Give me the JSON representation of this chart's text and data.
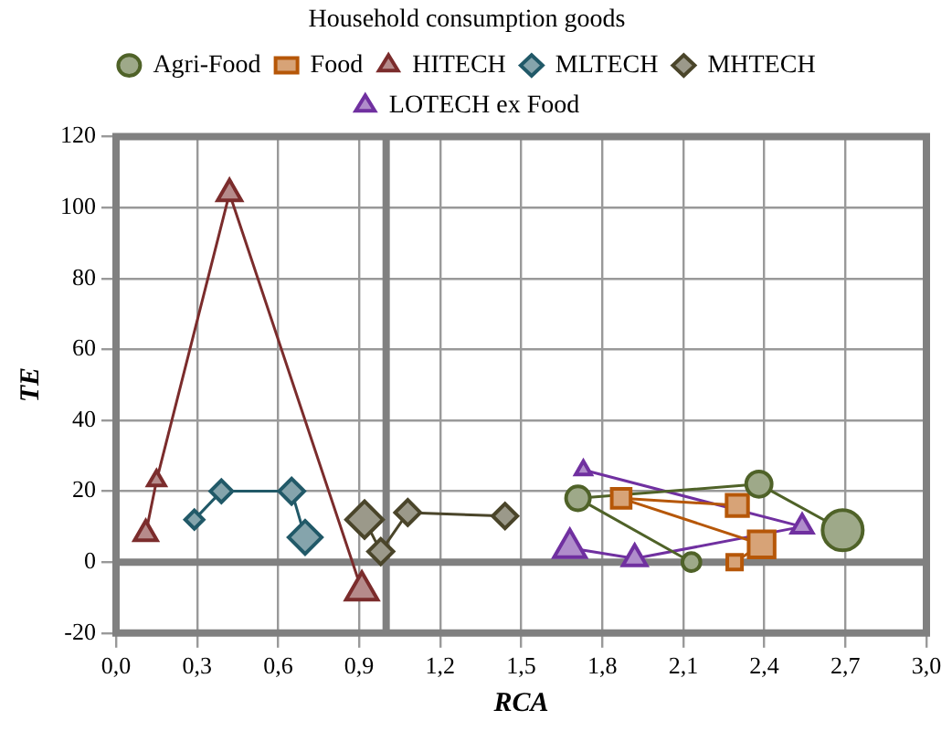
{
  "chart_data": {
    "type": "bubble",
    "xlabel": "RCA",
    "ylabel": "TE",
    "legend_title": "Household consumption goods",
    "legend": "top",
    "grid": true,
    "xlim": [
      0,
      3
    ],
    "xticks": [
      {
        "value": 0,
        "label": "0,0"
      },
      {
        "value": 0.3,
        "label": "0,3"
      },
      {
        "value": 0.6,
        "label": "0,6"
      },
      {
        "value": 0.9,
        "label": "0,9"
      },
      {
        "value": 1.2,
        "label": "1,2"
      },
      {
        "value": 1.5,
        "label": "1,5"
      },
      {
        "value": 1.8,
        "label": "1,8"
      },
      {
        "value": 2.1,
        "label": "2,1"
      },
      {
        "value": 2.4,
        "label": "2,4"
      },
      {
        "value": 2.7,
        "label": "2,7"
      },
      {
        "value": 3,
        "label": "3,0"
      }
    ],
    "ylim": [
      -20,
      120
    ],
    "yticks": [
      -20,
      0,
      20,
      40,
      60,
      80,
      100,
      120
    ],
    "ref_lines": [
      {
        "axis": "y",
        "value": 0,
        "color": "#808080"
      },
      {
        "axis": "x",
        "value": 1,
        "color": "#808080"
      }
    ],
    "series": [
      {
        "name": "Agri-Food",
        "color": "#4f6228",
        "marker": "circle",
        "x": [
          2.69,
          2.38,
          1.71,
          2.13
        ],
        "values": [
          9,
          22,
          18,
          0
        ],
        "sizes": [
          1,
          0.4,
          0.35,
          0.2
        ]
      },
      {
        "name": "Food",
        "color": "#b65708",
        "marker": "square",
        "x": [
          2.3,
          1.87,
          2.39,
          2.29
        ],
        "values": [
          16,
          18,
          5,
          0
        ],
        "sizes": [
          0.36,
          0.28,
          0.53,
          0.17
        ]
      },
      {
        "name": "HITECH",
        "color": "#7b2c2c",
        "marker": "triangle",
        "x": [
          0.91,
          0.42,
          0.15,
          0.11
        ],
        "values": [
          -8,
          104,
          23,
          8
        ],
        "sizes": [
          0.34,
          0.19,
          0.1,
          0.17
        ]
      },
      {
        "name": "MLTECH",
        "color": "#215968",
        "marker": "diamond",
        "x": [
          0.7,
          0.65,
          0.39,
          0.29
        ],
        "values": [
          7,
          20,
          20,
          12
        ],
        "sizes": [
          0.43,
          0.25,
          0.19,
          0.13
        ]
      },
      {
        "name": "MHTECH",
        "color": "#4a452a",
        "marker": "diamond",
        "x": [
          1.44,
          1.08,
          0.98,
          0.92
        ],
        "values": [
          13,
          14,
          3,
          12
        ],
        "sizes": [
          0.24,
          0.25,
          0.25,
          0.53
        ]
      },
      {
        "name": "LOTECH ex Food",
        "color": "#7030a0",
        "marker": "triangle",
        "x": [
          1.73,
          2.54,
          1.92,
          1.68
        ],
        "values": [
          26,
          10,
          1,
          4
        ],
        "sizes": [
          0.08,
          0.15,
          0.19,
          0.34
        ]
      },
      {
        "type": "line",
        "color": "#4f6228",
        "marker": "none",
        "line_style": "solid",
        "x": [
          2.69,
          2.38,
          1.71,
          2.13
        ],
        "values": [
          9,
          22,
          18,
          0
        ]
      },
      {
        "type": "line",
        "color": "#b65708",
        "marker": "none",
        "line_style": "solid",
        "x": [
          2.3,
          1.87,
          2.39,
          2.29
        ],
        "values": [
          16,
          18,
          5,
          0
        ]
      },
      {
        "type": "line",
        "color": "#7b2c2c",
        "marker": "none",
        "line_style": "solid",
        "x": [
          0.91,
          0.42,
          0.15,
          0.11
        ],
        "values": [
          -8,
          104,
          23,
          8
        ]
      },
      {
        "type": "line",
        "color": "#215968",
        "marker": "none",
        "line_style": "solid",
        "x": [
          0.7,
          0.65,
          0.39,
          0.29
        ],
        "values": [
          7,
          20,
          20,
          12
        ]
      },
      {
        "type": "line",
        "color": "#4a452a",
        "marker": "none",
        "line_style": "solid",
        "x": [
          1.44,
          1.08,
          0.98,
          0.92
        ],
        "values": [
          13,
          14,
          3,
          12
        ]
      },
      {
        "type": "line",
        "color": "#7030a0",
        "marker": "none",
        "line_style": "solid",
        "x": [
          1.73,
          2.54,
          1.92,
          1.68
        ],
        "values": [
          26,
          10,
          1,
          4
        ]
      }
    ]
  }
}
